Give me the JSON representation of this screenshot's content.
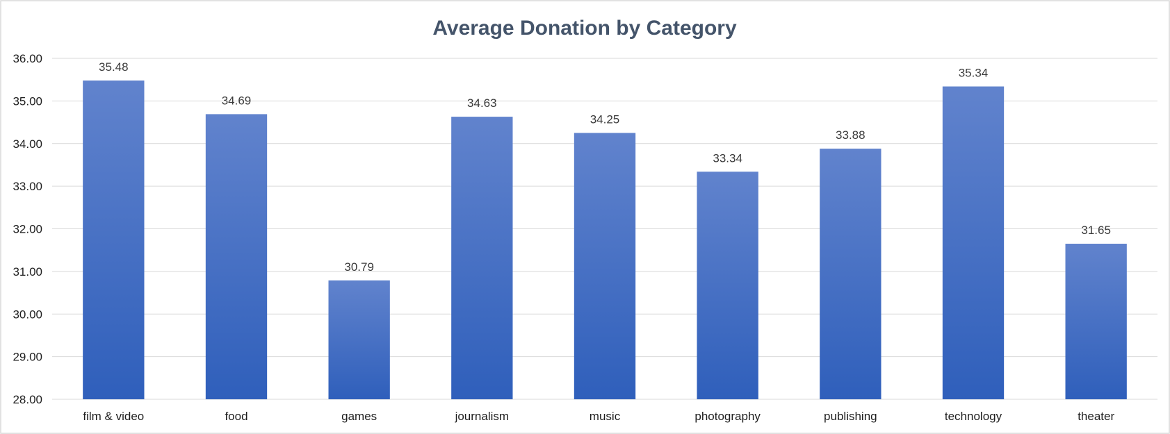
{
  "chart_data": {
    "type": "bar",
    "title": "Average Donation by Category",
    "xlabel": "",
    "ylabel": "",
    "categories": [
      "film & video",
      "food",
      "games",
      "journalism",
      "music",
      "photography",
      "publishing",
      "technology",
      "theater"
    ],
    "values": [
      35.48,
      34.69,
      30.79,
      34.63,
      34.25,
      33.34,
      33.88,
      35.34,
      31.65
    ],
    "data_labels": [
      "35.48",
      "34.69",
      "30.79",
      "34.63",
      "34.25",
      "33.34",
      "33.88",
      "35.34",
      "31.65"
    ],
    "ylim": [
      28,
      36
    ],
    "yticks": [
      28,
      29,
      30,
      31,
      32,
      33,
      34,
      35,
      36
    ],
    "ytick_labels": [
      "28.00",
      "29.00",
      "30.00",
      "31.00",
      "32.00",
      "33.00",
      "34.00",
      "35.00",
      "36.00"
    ],
    "grid": true,
    "legend": "none",
    "colors": {
      "bar_top": "#6183cd",
      "bar_bottom": "#2f5fbb",
      "title": "#44546a",
      "grid": "#d9d9d9"
    }
  }
}
